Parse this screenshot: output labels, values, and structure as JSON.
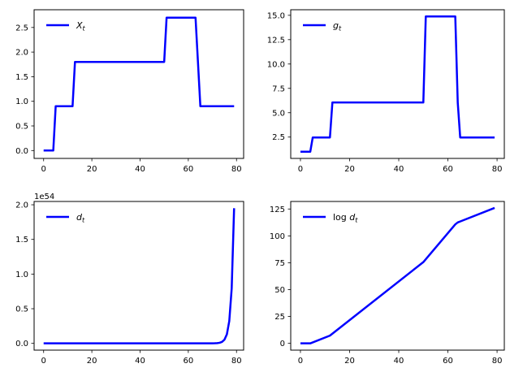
{
  "figure": {
    "background": "#ffffff",
    "line_color": "#0000ff",
    "text_color": "#000000",
    "spine_color": "#000000"
  },
  "chart_data": [
    {
      "id": "X_t",
      "type": "line",
      "position": "top-left",
      "legend": {
        "prefix": "",
        "var": "X",
        "sub": "t"
      },
      "legend_location": "upper left",
      "line_color": "#0000ff",
      "x": [
        0,
        4,
        5,
        12,
        13,
        50,
        51,
        63,
        64,
        65,
        79
      ],
      "y": [
        0,
        0,
        0.9,
        0.9,
        1.8,
        1.8,
        2.7,
        2.7,
        1.8,
        0.9,
        0.9
      ],
      "xlim": [
        -3.95,
        82.95
      ],
      "ylim": [
        -0.16,
        2.86
      ],
      "xticks": [
        0,
        20,
        40,
        60,
        80
      ],
      "xtick_labels": [
        "0",
        "20",
        "40",
        "60",
        "80"
      ],
      "yticks": [
        0.0,
        0.5,
        1.0,
        1.5,
        2.0,
        2.5
      ],
      "ytick_labels": [
        "0.0",
        "0.5",
        "1.0",
        "1.5",
        "2.0",
        "2.5"
      ],
      "grid": false
    },
    {
      "id": "g_t",
      "type": "line",
      "position": "top-right",
      "legend": {
        "prefix": "",
        "var": "g",
        "sub": "t"
      },
      "legend_location": "upper left",
      "line_color": "#0000ff",
      "x": [
        0,
        4,
        5,
        12,
        13,
        50,
        51,
        63,
        64,
        65,
        79
      ],
      "y": [
        1.0,
        1.0,
        2.46,
        2.46,
        6.05,
        6.05,
        14.88,
        14.88,
        6.05,
        2.46,
        2.46
      ],
      "xlim": [
        -3.95,
        82.95
      ],
      "ylim": [
        0.31,
        15.57
      ],
      "xticks": [
        0,
        20,
        40,
        60,
        80
      ],
      "xtick_labels": [
        "0",
        "20",
        "40",
        "60",
        "80"
      ],
      "yticks": [
        2.5,
        5.0,
        7.5,
        10.0,
        12.5,
        15.0
      ],
      "ytick_labels": [
        "2.5",
        "5.0",
        "7.5",
        "10.0",
        "12.5",
        "15.0"
      ],
      "grid": false
    },
    {
      "id": "d_t",
      "type": "line",
      "position": "bottom-left",
      "legend": {
        "prefix": "",
        "var": "d",
        "sub": "t"
      },
      "legend_location": "upper left",
      "line_color": "#0000ff",
      "offset_text": "1e54",
      "x": [
        0,
        10,
        20,
        30,
        40,
        50,
        55,
        60,
        63,
        65,
        68,
        70,
        71,
        72,
        73,
        74,
        75,
        76,
        77,
        78,
        79
      ],
      "y": [
        0,
        0,
        0,
        0,
        0,
        0,
        0,
        0.0001,
        0.0002,
        0.0004,
        0.0006,
        0.0009,
        0.0015,
        0.0036,
        0.0087,
        0.0216,
        0.0533,
        0.131,
        0.322,
        0.793,
        1.95
      ],
      "xlim": [
        -3.95,
        82.95
      ],
      "ylim": [
        -0.0975,
        2.0475
      ],
      "xticks": [
        0,
        20,
        40,
        60,
        80
      ],
      "xtick_labels": [
        "0",
        "20",
        "40",
        "60",
        "80"
      ],
      "yticks": [
        0.0,
        0.5,
        1.0,
        1.5,
        2.0
      ],
      "ytick_labels": [
        "0.0",
        "0.5",
        "1.0",
        "1.5",
        "2.0"
      ],
      "grid": false
    },
    {
      "id": "log_d_t",
      "type": "line",
      "position": "bottom-right",
      "legend": {
        "prefix": "log ",
        "var": "d",
        "sub": "t"
      },
      "legend_location": "upper left",
      "line_color": "#0000ff",
      "x": [
        0,
        4,
        12,
        50,
        63,
        64,
        65,
        79
      ],
      "y": [
        0,
        0,
        7.2,
        75.6,
        110.7,
        112.5,
        113.4,
        126.0
      ],
      "xlim": [
        -3.95,
        82.95
      ],
      "ylim": [
        -6.3,
        132.0
      ],
      "xticks": [
        0,
        20,
        40,
        60,
        80
      ],
      "xtick_labels": [
        "0",
        "20",
        "40",
        "60",
        "80"
      ],
      "yticks": [
        0,
        25,
        50,
        75,
        100,
        125
      ],
      "ytick_labels": [
        "0",
        "25",
        "50",
        "75",
        "100",
        "125"
      ],
      "grid": false
    }
  ]
}
